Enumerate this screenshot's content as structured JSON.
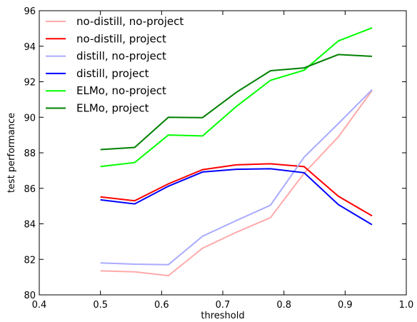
{
  "chart_data": {
    "type": "line",
    "xlabel": "threshold",
    "ylabel": "test performance",
    "xlim": [
      0.4,
      1.0
    ],
    "ylim": [
      80,
      96
    ],
    "xticks": [
      "0.4",
      "0.5",
      "0.6",
      "0.7",
      "0.8",
      "0.9",
      "1.0"
    ],
    "yticks": [
      "80",
      "82",
      "84",
      "86",
      "88",
      "90",
      "92",
      "94",
      "96"
    ],
    "grid": false,
    "legend_position": "top-left",
    "x": [
      0.5,
      0.556,
      0.611,
      0.667,
      0.722,
      0.778,
      0.833,
      0.889,
      0.944
    ],
    "series": [
      {
        "name": "no-distill, no-project",
        "color": "#ffaaaa",
        "values": [
          81.35,
          81.3,
          81.08,
          82.63,
          83.52,
          84.35,
          86.85,
          88.9,
          91.5
        ]
      },
      {
        "name": "no-distill, project",
        "color": "#ff0000",
        "values": [
          85.52,
          85.3,
          86.25,
          87.05,
          87.32,
          87.38,
          87.22,
          85.55,
          84.45
        ]
      },
      {
        "name": "distill, no-project",
        "color": "#aaaaff",
        "values": [
          81.8,
          81.73,
          81.7,
          83.3,
          84.18,
          85.05,
          87.75,
          89.65,
          91.55
        ]
      },
      {
        "name": "distill, project",
        "color": "#0000ff",
        "values": [
          85.35,
          85.12,
          86.12,
          86.92,
          87.07,
          87.1,
          86.88,
          85.08,
          83.95
        ]
      },
      {
        "name": "ELMo, no-project",
        "color": "#00ff00",
        "values": [
          87.23,
          87.45,
          89.0,
          88.95,
          90.6,
          92.08,
          92.65,
          94.3,
          95.03
        ]
      },
      {
        "name": "ELMo, project",
        "color": "#008000",
        "values": [
          88.18,
          88.3,
          90.0,
          89.98,
          91.4,
          92.62,
          92.78,
          93.53,
          93.43
        ]
      }
    ]
  }
}
